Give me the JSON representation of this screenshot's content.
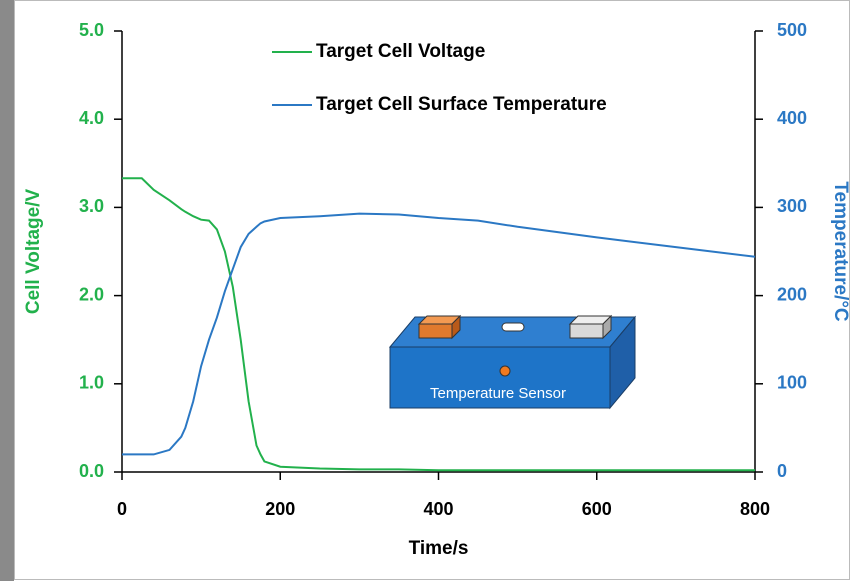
{
  "chart_data": {
    "type": "line",
    "x": [
      0,
      25,
      40,
      60,
      75,
      80,
      90,
      100,
      110,
      120,
      130,
      140,
      150,
      160,
      170,
      175,
      180,
      200,
      250,
      300,
      350,
      400,
      450,
      500,
      600,
      700,
      800
    ],
    "series": [
      {
        "name": "Target Cell Voltage",
        "color": "#22b14c",
        "values": [
          3.33,
          3.33,
          3.2,
          3.08,
          2.98,
          2.95,
          2.9,
          2.86,
          2.85,
          2.75,
          2.5,
          2.1,
          1.5,
          0.8,
          0.3,
          0.2,
          0.12,
          0.06,
          0.04,
          0.03,
          0.03,
          0.02,
          0.02,
          0.02,
          0.02,
          0.02,
          0.02
        ]
      },
      {
        "name": "Target Cell Surface Temperature",
        "color": "#2b78c4",
        "axis": "y2",
        "values": [
          20,
          20,
          20,
          25,
          40,
          50,
          80,
          120,
          150,
          175,
          205,
          230,
          255,
          270,
          278,
          282,
          284,
          288,
          290,
          293,
          292,
          288,
          285,
          278,
          266,
          255,
          244
        ]
      }
    ],
    "x_label": "Time/s",
    "y_label": "Cell Voltage/V",
    "y2_label": "Temperature/°C",
    "annotation": "Temperature Sensor",
    "xlim": [
      0,
      800
    ],
    "xticks": [
      0,
      200,
      400,
      600,
      800
    ],
    "ylim": [
      0,
      5
    ],
    "yticks": [
      {
        "value": 0,
        "label": "0.0"
      },
      {
        "value": 1,
        "label": "1.0"
      },
      {
        "value": 2,
        "label": "2.0"
      },
      {
        "value": 3,
        "label": "3.0"
      },
      {
        "value": 4,
        "label": "4.0"
      },
      {
        "value": 5,
        "label": "5.0"
      }
    ],
    "y2lim": [
      0,
      500
    ],
    "y2ticks": [
      0,
      100,
      200,
      300,
      400,
      500
    ]
  }
}
